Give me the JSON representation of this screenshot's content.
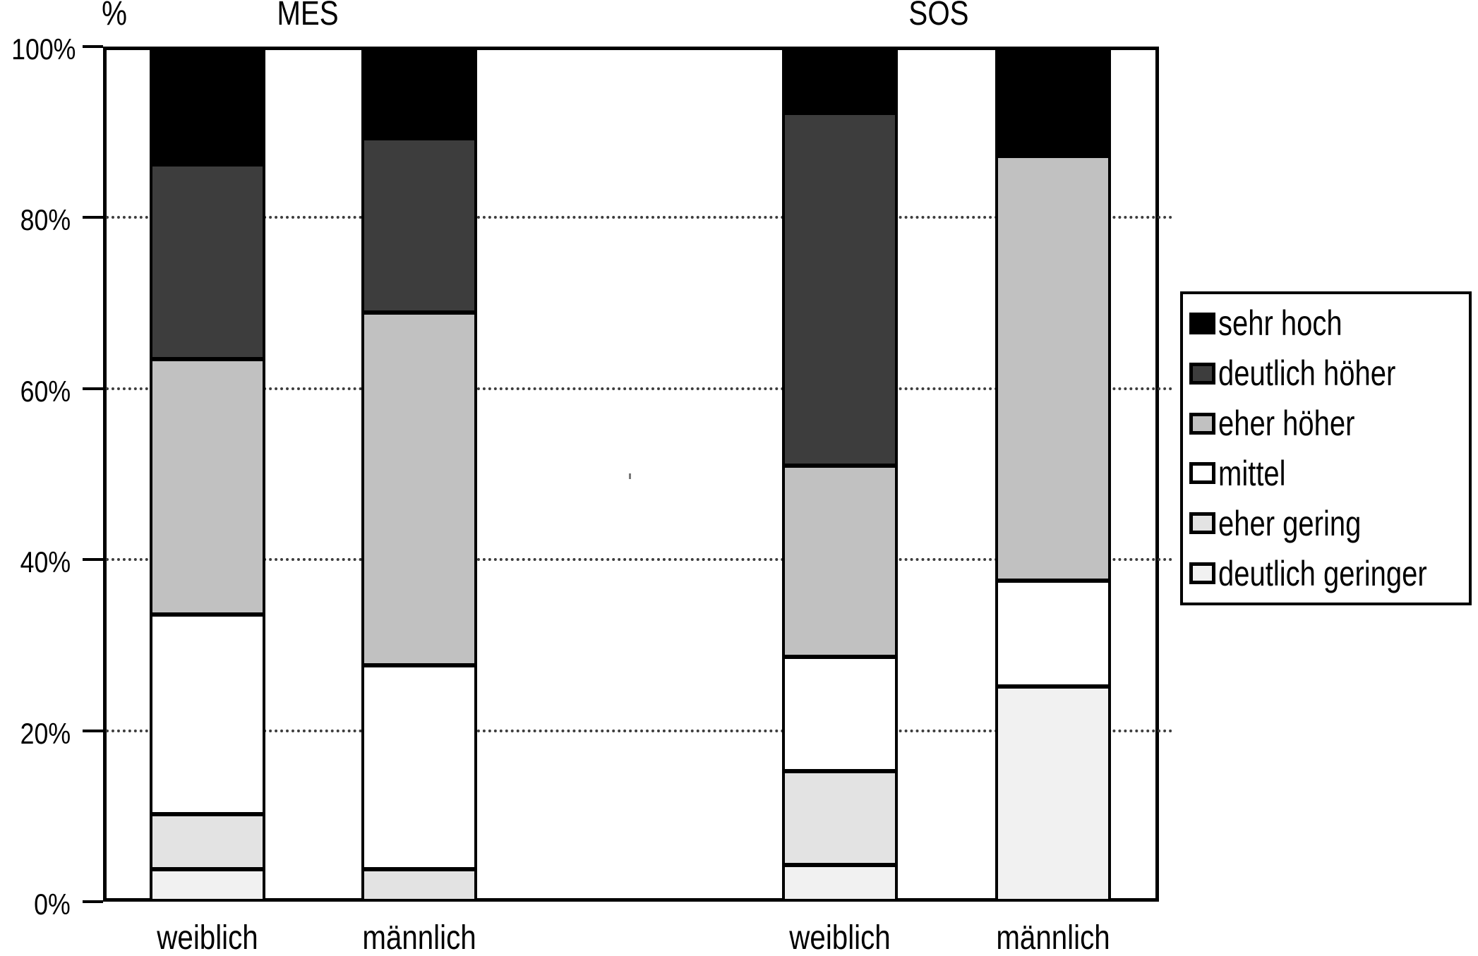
{
  "chart": {
    "y_axis_unit": "%",
    "group_titles": [
      "MES",
      "SOS"
    ],
    "y_ticks": [
      {
        "label": "0%",
        "value": 0
      },
      {
        "label": "20%",
        "value": 20
      },
      {
        "label": "40%",
        "value": 40
      },
      {
        "label": "60%",
        "value": 60
      },
      {
        "label": "80%",
        "value": 80
      },
      {
        "label": "100%",
        "value": 100
      }
    ]
  },
  "legend": {
    "items": [
      {
        "label": "sehr hoch",
        "color": "#000000"
      },
      {
        "label": "deutlich höher",
        "color": "#3d3d3d"
      },
      {
        "label": "eher höher",
        "color": "#c1c1c1"
      },
      {
        "label": "mittel",
        "color": "#ffffff"
      },
      {
        "label": "eher gering",
        "color": "#e3e3e3"
      },
      {
        "label": "deutlich geringer",
        "color": "#f1f1f1"
      }
    ]
  },
  "chart_data": {
    "type": "bar",
    "stacked": true,
    "percent_scale": true,
    "ylim": [
      0,
      100
    ],
    "ylabel": "%",
    "grid": "dotted horizontal at 20/40/60/80",
    "legend_position": "right",
    "gridlines_percent": [
      20,
      40,
      60,
      80
    ],
    "groups": [
      "MES",
      "SOS"
    ],
    "categories": [
      "MES weiblich",
      "MES männlich",
      "SOS weiblich",
      "SOS männlich"
    ],
    "x_tick_labels": [
      "weiblich",
      "männlich",
      "weiblich",
      "männlich"
    ],
    "stacking_order": "bottom to top: deutlich geringer, eher gering, mittel, eher höher, deutlich höher, sehr hoch",
    "series": [
      {
        "name": "deutlich geringer",
        "color": "#f1f1f1",
        "values": [
          3.5,
          0,
          4,
          25
        ]
      },
      {
        "name": "eher gering",
        "color": "#e3e3e3",
        "values": [
          6.5,
          3.5,
          11,
          0
        ]
      },
      {
        "name": "mittel",
        "color": "#ffffff",
        "values": [
          23.5,
          24,
          13.5,
          12.5
        ]
      },
      {
        "name": "eher höher",
        "color": "#c1c1c1",
        "values": [
          30,
          41.5,
          22.5,
          50
        ]
      },
      {
        "name": "deutlich höher",
        "color": "#3d3d3d",
        "values": [
          23,
          20.5,
          41.5,
          0
        ]
      },
      {
        "name": "sehr hoch",
        "color": "#000000",
        "values": [
          13.5,
          10.5,
          7.5,
          12.5
        ]
      }
    ]
  }
}
